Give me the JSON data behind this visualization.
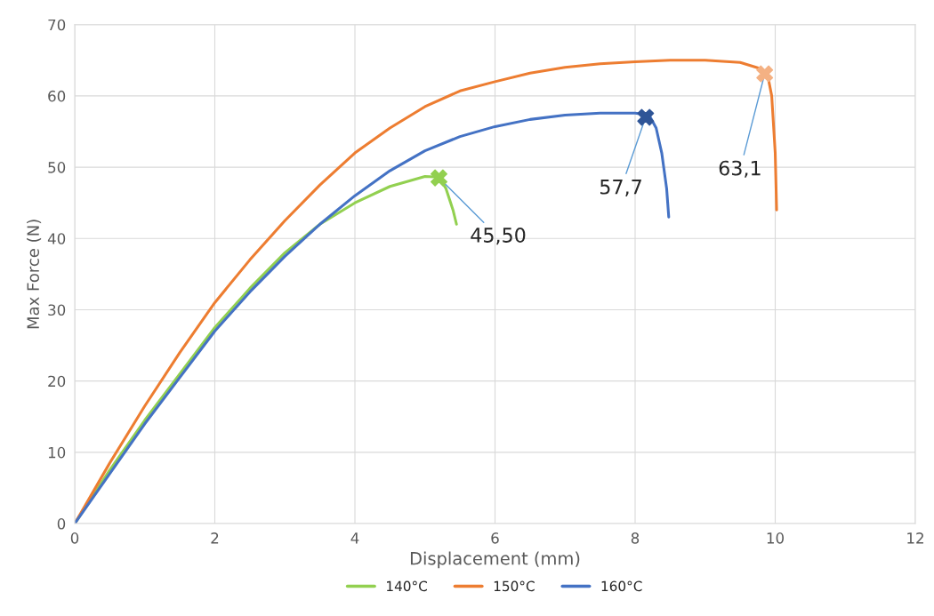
{
  "chart_data": {
    "type": "line",
    "xlabel": "Displacement (mm)",
    "ylabel": "Max Force (N)",
    "xlim": [
      0,
      12
    ],
    "xticks": [
      0,
      2,
      4,
      6,
      8,
      10,
      12
    ],
    "ylim": [
      0,
      70
    ],
    "yticks": [
      0,
      10,
      20,
      30,
      40,
      50,
      60,
      70
    ],
    "grid": true,
    "legend": "bottom",
    "marker": "none",
    "line_style": "solid",
    "series": [
      {
        "name": "140°C",
        "color": "#92d050",
        "x": [
          0,
          0.5,
          1,
          1.5,
          2,
          2.5,
          3,
          3.5,
          4,
          4.5,
          5,
          5.2,
          5.3,
          5.4,
          5.45
        ],
        "values": [
          0,
          7.5,
          14.5,
          21,
          27.5,
          33,
          38,
          42,
          45,
          47.3,
          48.7,
          48.6,
          47,
          44,
          42
        ]
      },
      {
        "name": "150°C",
        "color": "#ed7d31",
        "x": [
          0,
          0.5,
          1,
          1.5,
          2,
          2.5,
          3,
          3.5,
          4,
          4.5,
          5,
          5.5,
          6,
          6.5,
          7,
          7.5,
          8,
          8.5,
          9,
          9.5,
          9.8,
          9.9,
          9.95,
          10,
          10.02
        ],
        "values": [
          0,
          8.5,
          16.5,
          24,
          31,
          37,
          42.5,
          47.5,
          52,
          55.5,
          58.5,
          60.7,
          62,
          63.2,
          64,
          64.5,
          64.8,
          65,
          65,
          64.7,
          63.8,
          62.5,
          60,
          52,
          44
        ]
      },
      {
        "name": "160°C",
        "color": "#4472c4",
        "x": [
          0,
          0.5,
          1,
          1.5,
          2,
          2.5,
          3,
          3.5,
          4,
          4.5,
          5,
          5.5,
          6,
          6.5,
          7,
          7.5,
          8,
          8.2,
          8.3,
          8.38,
          8.45,
          8.48
        ],
        "values": [
          0,
          7,
          14,
          20.5,
          27,
          32.5,
          37.5,
          42,
          46,
          49.5,
          52.3,
          54.3,
          55.7,
          56.7,
          57.3,
          57.6,
          57.6,
          57.3,
          55.5,
          52,
          47,
          43
        ]
      },
      {
        "type": "scatter",
        "marker": "cross",
        "color": "#92d050",
        "x": [
          5.2
        ],
        "values": [
          48.5
        ]
      },
      {
        "type": "scatter",
        "marker": "cross",
        "color": "#2f5597",
        "x": [
          8.15
        ],
        "values": [
          57
        ]
      },
      {
        "type": "scatter",
        "marker": "cross",
        "color": "#f4b183",
        "x": [
          9.85
        ],
        "values": [
          63.1
        ]
      }
    ],
    "annotations": [
      {
        "text": "45,50",
        "x": 5.2,
        "y": 48.5
      },
      {
        "text": "57,7",
        "x": 8.15,
        "y": 57
      },
      {
        "text": "63,1",
        "x": 9.85,
        "y": 63.1
      }
    ]
  }
}
